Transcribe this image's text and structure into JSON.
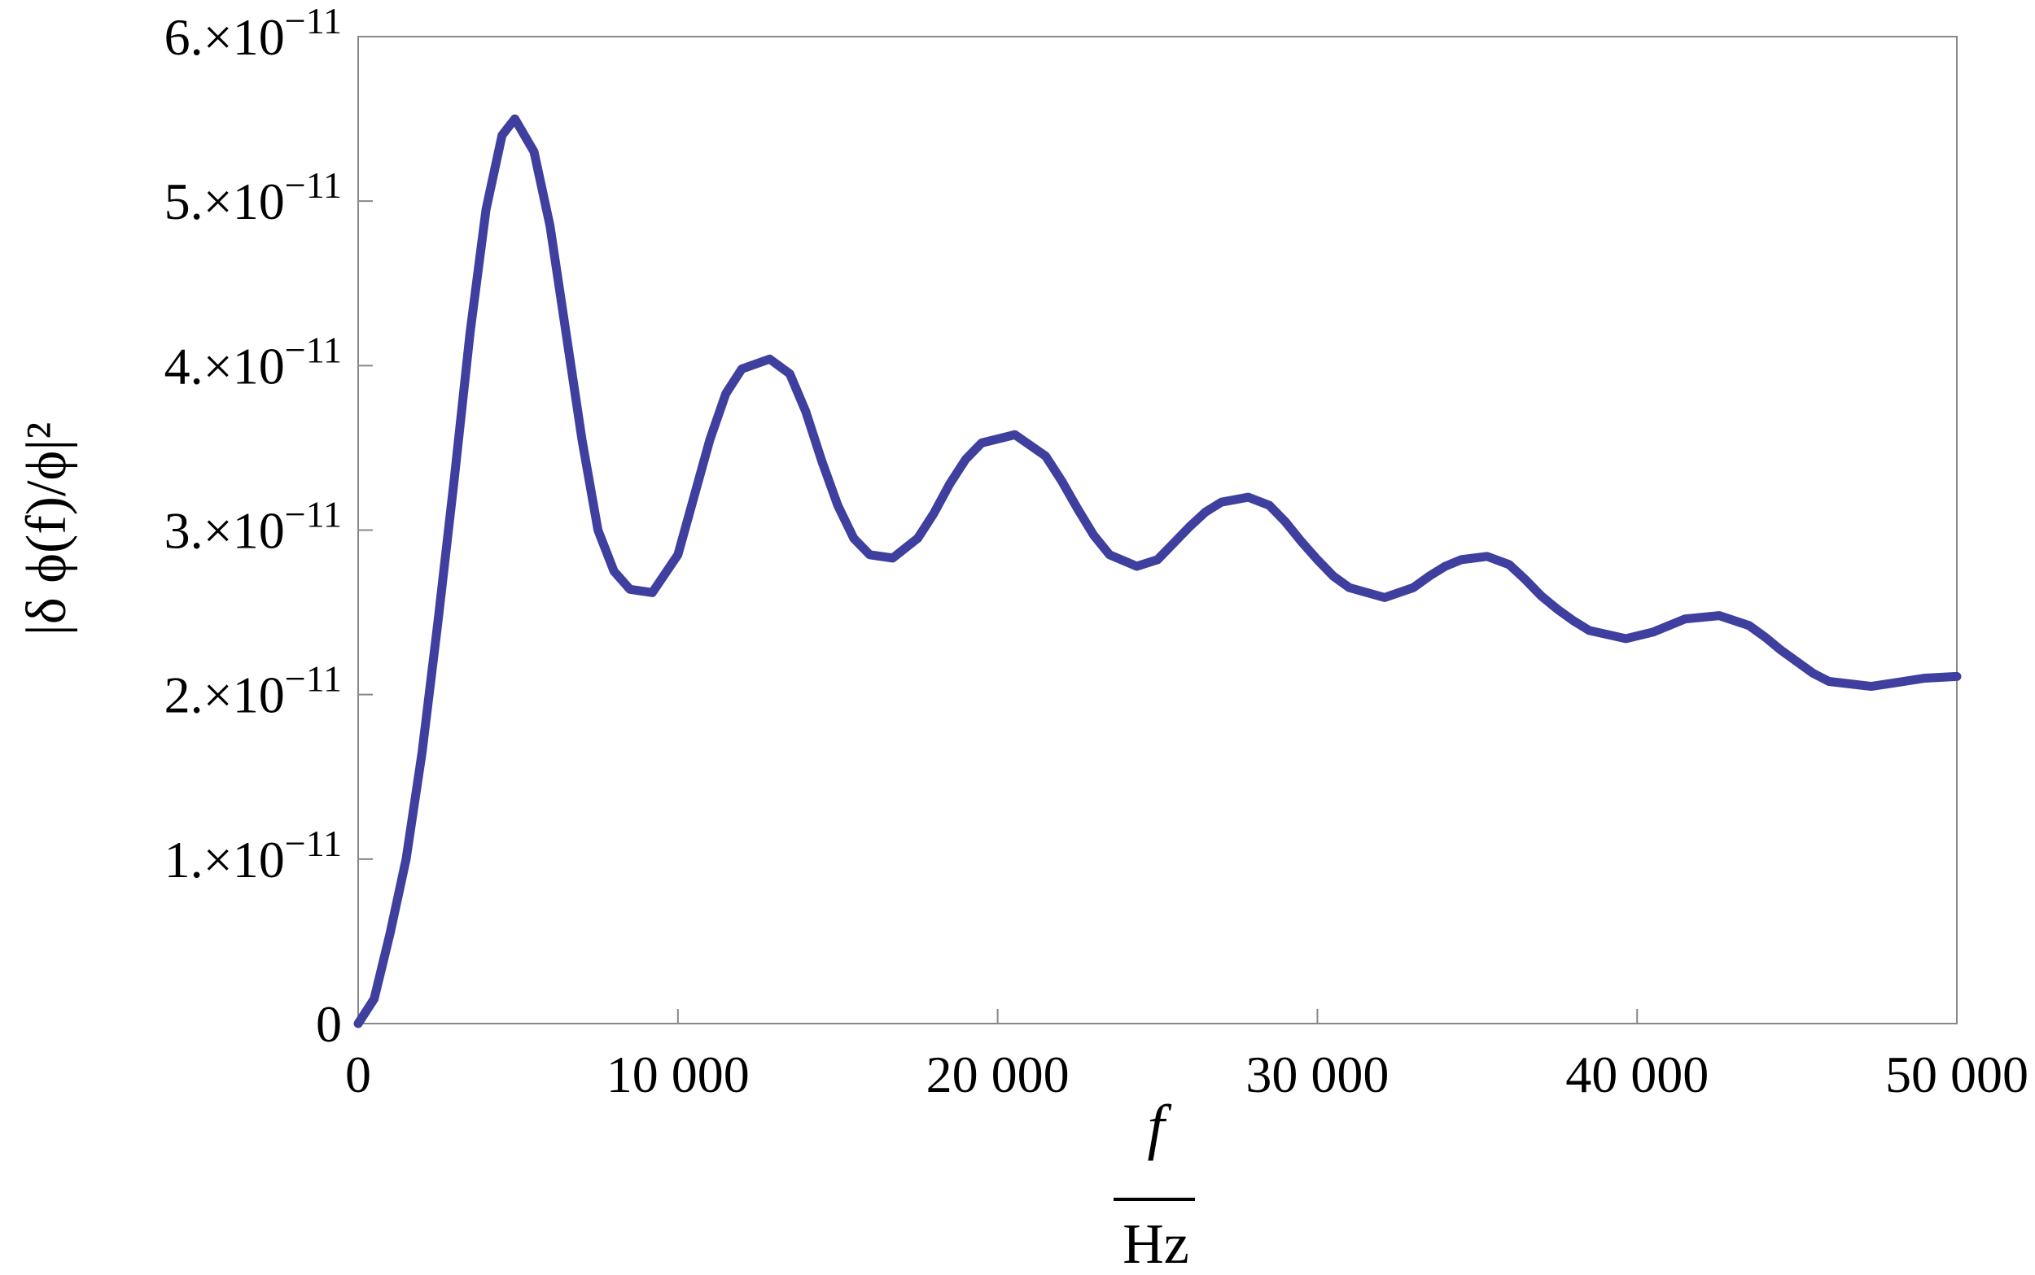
{
  "chart_data": {
    "type": "line",
    "x": [
      0,
      500,
      1000,
      1500,
      2000,
      2500,
      3000,
      3500,
      4000,
      4500,
      4900,
      5500,
      6000,
      6500,
      7000,
      7500,
      8000,
      8500,
      9200,
      10000,
      10500,
      11000,
      11500,
      12000,
      12870,
      13500,
      14000,
      14500,
      15000,
      15500,
      16000,
      16720,
      17500,
      18000,
      18500,
      19000,
      19500,
      20540,
      21500,
      22000,
      22500,
      23000,
      23500,
      24350,
      25000,
      25500,
      26000,
      26500,
      27000,
      27840,
      28500,
      29000,
      29500,
      30000,
      30500,
      31000,
      32100,
      33000,
      33500,
      34000,
      34500,
      35310,
      36000,
      36500,
      37000,
      37500,
      38000,
      38500,
      39650,
      40500,
      41000,
      41500,
      42570,
      43500,
      44000,
      44500,
      45000,
      45500,
      46000,
      47320,
      48000,
      49000,
      50000
    ],
    "values": [
      0,
      1.5e-12,
      5.5e-12,
      1e-11,
      1.65e-11,
      2.45e-11,
      3.3e-11,
      4.2e-11,
      4.95e-11,
      5.4e-11,
      5.5e-11,
      5.3e-11,
      4.85e-11,
      4.2e-11,
      3.55e-11,
      3e-11,
      2.75e-11,
      2.64e-11,
      2.62e-11,
      2.85e-11,
      3.2e-11,
      3.55e-11,
      3.83e-11,
      3.98e-11,
      4.04e-11,
      3.95e-11,
      3.72e-11,
      3.42e-11,
      3.15e-11,
      2.95e-11,
      2.85e-11,
      2.83e-11,
      2.95e-11,
      3.1e-11,
      3.28e-11,
      3.43e-11,
      3.53e-11,
      3.58e-11,
      3.45e-11,
      3.3e-11,
      3.13e-11,
      2.97e-11,
      2.85e-11,
      2.78e-11,
      2.82e-11,
      2.92e-11,
      3.02e-11,
      3.11e-11,
      3.17e-11,
      3.2e-11,
      3.15e-11,
      3.05e-11,
      2.93e-11,
      2.82e-11,
      2.72e-11,
      2.65e-11,
      2.59e-11,
      2.65e-11,
      2.72e-11,
      2.78e-11,
      2.82e-11,
      2.84e-11,
      2.79e-11,
      2.7e-11,
      2.6e-11,
      2.52e-11,
      2.45e-11,
      2.39e-11,
      2.34e-11,
      2.38e-11,
      2.42e-11,
      2.46e-11,
      2.48e-11,
      2.42e-11,
      2.35e-11,
      2.27e-11,
      2.2e-11,
      2.13e-11,
      2.08e-11,
      2.05e-11,
      2.07e-11,
      2.1e-11,
      2.11e-11
    ],
    "color": "#3f3f9f",
    "xlim": [
      0,
      50000
    ],
    "ylim": [
      0,
      6e-11
    ],
    "xticks": [
      0,
      {
        "value": 10000,
        "label": "10 000"
      },
      {
        "value": 20000,
        "label": "20 000"
      },
      {
        "value": 30000,
        "label": "30 000"
      },
      {
        "value": 40000,
        "label": "40 000"
      },
      {
        "value": 50000,
        "label": "50 000"
      }
    ],
    "yticks": [
      0,
      {
        "value": 1e-11,
        "label": "1.×10−11"
      },
      {
        "value": 2e-11,
        "label": "2.×10−11"
      },
      {
        "value": 3e-11,
        "label": "3.×10−11"
      },
      {
        "value": 4e-11,
        "label": "4.×10−11"
      },
      {
        "value": 5e-11,
        "label": "5.×10−11"
      },
      {
        "value": 6e-11,
        "label": "6.×10−11"
      }
    ],
    "x_label": "f",
    "x_label_unit": "Hz",
    "y_label": "|δ ϕ(f)/ϕ|²"
  }
}
